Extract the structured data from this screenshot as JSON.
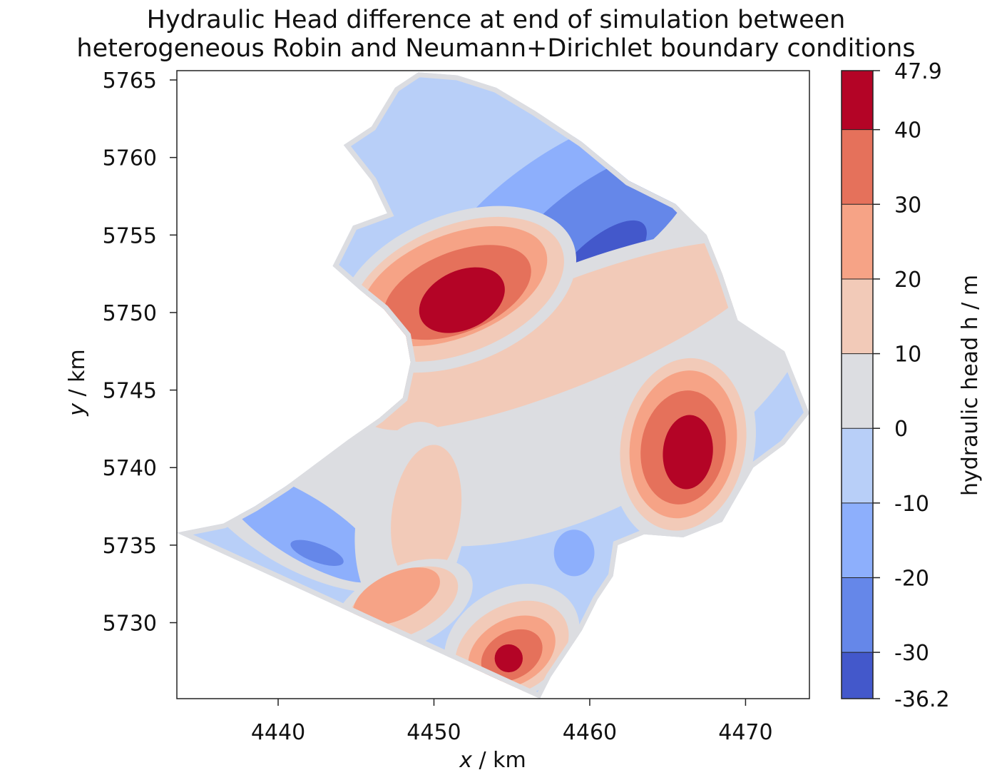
{
  "chart_data": {
    "type": "contour",
    "title_lines": [
      "Hydraulic Head difference at end of simulation between",
      "heterogeneous Robin and Neumann+Dirichlet boundary conditions"
    ],
    "xlabel_var": "x",
    "xlabel_unit": " / km",
    "ylabel_var": "y",
    "ylabel_unit": " / km",
    "xlim": [
      4433.5,
      4474.1
    ],
    "ylim": [
      5725.1,
      5765.6
    ],
    "xticks": [
      4440,
      4450,
      4460,
      4470
    ],
    "yticks": [
      5730,
      5735,
      5740,
      5745,
      5750,
      5755,
      5760,
      5765
    ],
    "colorbar": {
      "label": "hydraulic head h / m",
      "min": -36.2,
      "max": 47.9,
      "ticks": [
        "-36.2",
        "-30",
        "-20",
        "-10",
        "0",
        "10",
        "20",
        "30",
        "40",
        "47.9"
      ],
      "levels": [
        -36.2,
        -30,
        -20,
        -10,
        0,
        10,
        20,
        30,
        40,
        47.9
      ],
      "colors": [
        "#4358cb",
        "#6587e9",
        "#8daffc",
        "#b8cff8",
        "#dcdde1",
        "#f2cab8",
        "#f6a386",
        "#e5715b",
        "#b40426"
      ]
    },
    "domain_outline": [
      [
        4433.5,
        5735.8
      ],
      [
        4436.5,
        5736.4
      ],
      [
        4438.5,
        5737.5
      ],
      [
        4440.5,
        5738.8
      ],
      [
        4442.5,
        5740.3
      ],
      [
        4444.5,
        5741.8
      ],
      [
        4446.5,
        5743.2
      ],
      [
        4448.0,
        5744.5
      ],
      [
        4448.5,
        5746.8
      ],
      [
        4448.2,
        5748.5
      ],
      [
        4446.8,
        5750.2
      ],
      [
        4445.2,
        5751.5
      ],
      [
        4443.5,
        5753.0
      ],
      [
        4444.8,
        5755.6
      ],
      [
        4447.0,
        5756.4
      ],
      [
        4446.0,
        5758.5
      ],
      [
        4444.2,
        5760.8
      ],
      [
        4446.0,
        5762.0
      ],
      [
        4447.5,
        5764.5
      ],
      [
        4449.0,
        5765.5
      ],
      [
        4451.5,
        5765.3
      ],
      [
        4454.0,
        5764.5
      ],
      [
        4456.5,
        5763.0
      ],
      [
        4459.5,
        5761.0
      ],
      [
        4462.5,
        5758.5
      ],
      [
        4465.5,
        5757.0
      ],
      [
        4467.5,
        5755.0
      ],
      [
        4468.5,
        5752.5
      ],
      [
        4469.5,
        5749.5
      ],
      [
        4472.5,
        5747.5
      ],
      [
        4474.1,
        5743.5
      ],
      [
        4472.5,
        5741.5
      ],
      [
        4470.5,
        5740.0
      ],
      [
        4468.5,
        5736.5
      ],
      [
        4466.0,
        5735.5
      ],
      [
        4463.5,
        5735.7
      ],
      [
        4461.8,
        5735.0
      ],
      [
        4461.5,
        5733.0
      ],
      [
        4460.5,
        5731.5
      ],
      [
        4459.5,
        5729.5
      ],
      [
        4458.5,
        5728.0
      ],
      [
        4457.5,
        5726.5
      ],
      [
        4456.8,
        5725.1
      ],
      [
        4433.5,
        5735.8
      ]
    ],
    "blobs": [
      {
        "level": 4,
        "center": [
          4458.5,
          5747.5
        ],
        "rx": 18.0,
        "ry": 10.5,
        "angle": -28
      },
      {
        "level": 2,
        "center": [
          4459.0,
          5756.5
        ],
        "rx": 10.5,
        "ry": 4.2,
        "angle": -33
      },
      {
        "level": 1,
        "center": [
          4460.5,
          5755.5
        ],
        "rx": 7.5,
        "ry": 2.9,
        "angle": -36
      },
      {
        "level": 0,
        "center": [
          4460.5,
          5753.0
        ],
        "rx": 4.0,
        "ry": 1.6,
        "angle": -42
      },
      {
        "level": 4,
        "center": [
          4441.5,
          5737.0
        ],
        "rx": 8.0,
        "ry": 3.5,
        "angle": 30
      },
      {
        "level": 2,
        "center": [
          4441.5,
          5736.2
        ],
        "rx": 6.0,
        "ry": 2.0,
        "angle": 32
      },
      {
        "level": 1,
        "center": [
          4442.5,
          5734.5
        ],
        "rx": 1.8,
        "ry": 0.6,
        "angle": 20
      },
      {
        "level": 2,
        "center": [
          4459.0,
          5734.5
        ],
        "rx": 1.3,
        "ry": 1.5,
        "angle": 0
      },
      {
        "level": 4,
        "center": [
          4458.5,
          5748.5
        ],
        "rx": 15.5,
        "ry": 4.2,
        "angle": -22
      },
      {
        "level": 5,
        "center": [
          4458.5,
          5748.5
        ],
        "rx": 14.0,
        "ry": 3.3,
        "angle": -22
      },
      {
        "level": 4,
        "center": [
          4448.5,
          5736.5
        ],
        "rx": 3.5,
        "ry": 6.5,
        "angle": 8
      },
      {
        "level": 5,
        "center": [
          4449.5,
          5737.0
        ],
        "rx": 2.2,
        "ry": 4.5,
        "angle": 8
      },
      {
        "level": 4,
        "center": [
          4448.0,
          5731.0
        ],
        "rx": 4.8,
        "ry": 2.6,
        "angle": -25
      },
      {
        "level": 5,
        "center": [
          4448.0,
          5731.2
        ],
        "rx": 3.8,
        "ry": 2.0,
        "angle": -25
      },
      {
        "level": 6,
        "center": [
          4447.6,
          5731.7
        ],
        "rx": 3.0,
        "ry": 1.5,
        "angle": -25
      },
      {
        "level": 4,
        "center": [
          4451.5,
          5751.5
        ],
        "rx": 8.0,
        "ry": 4.8,
        "angle": -22
      },
      {
        "level": 5,
        "center": [
          4451.5,
          5751.5
        ],
        "rx": 7.2,
        "ry": 4.1,
        "angle": -22
      },
      {
        "level": 6,
        "center": [
          4451.3,
          5751.7
        ],
        "rx": 6.3,
        "ry": 3.3,
        "angle": -22
      },
      {
        "level": 7,
        "center": [
          4451.5,
          5751.3
        ],
        "rx": 5.0,
        "ry": 2.6,
        "angle": -22
      },
      {
        "level": 8,
        "center": [
          4451.8,
          5750.8
        ],
        "rx": 2.9,
        "ry": 1.9,
        "angle": -25
      },
      {
        "level": 4,
        "center": [
          4466.0,
          5741.5
        ],
        "rx": 4.6,
        "ry": 6.5,
        "angle": 10
      },
      {
        "level": 5,
        "center": [
          4466.0,
          5741.5
        ],
        "rx": 4.0,
        "ry": 5.6,
        "angle": 10
      },
      {
        "level": 6,
        "center": [
          4466.0,
          5741.5
        ],
        "rx": 3.4,
        "ry": 4.8,
        "angle": 10
      },
      {
        "level": 7,
        "center": [
          4466.0,
          5741.3
        ],
        "rx": 2.7,
        "ry": 3.7,
        "angle": 10
      },
      {
        "level": 8,
        "center": [
          4466.3,
          5741.0
        ],
        "rx": 1.6,
        "ry": 2.4,
        "angle": 5
      },
      {
        "level": 4,
        "center": [
          4455.0,
          5728.7
        ],
        "rx": 4.6,
        "ry": 3.5,
        "angle": -30
      },
      {
        "level": 5,
        "center": [
          4455.0,
          5728.3
        ],
        "rx": 3.9,
        "ry": 2.8,
        "angle": -30
      },
      {
        "level": 6,
        "center": [
          4455.0,
          5728.1
        ],
        "rx": 3.0,
        "ry": 2.1,
        "angle": -30
      },
      {
        "level": 7,
        "center": [
          4455.0,
          5727.9
        ],
        "rx": 2.1,
        "ry": 1.5,
        "angle": -30
      },
      {
        "level": 8,
        "center": [
          4454.8,
          5727.7
        ],
        "rx": 0.9,
        "ry": 0.9,
        "angle": 0
      }
    ]
  }
}
